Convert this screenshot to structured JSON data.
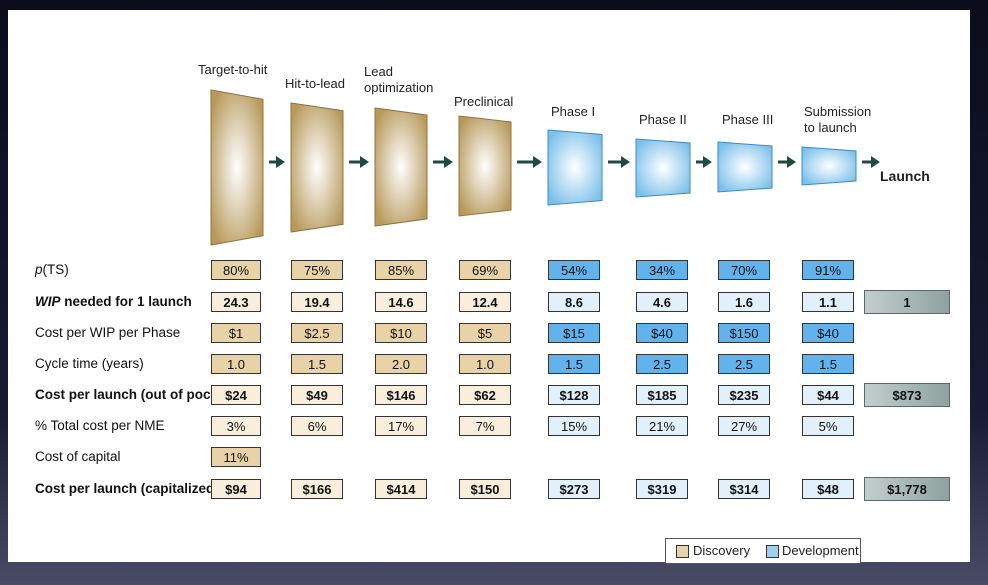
{
  "stages": [
    {
      "label": "Target-to-hit",
      "group": "discovery"
    },
    {
      "label": "Hit-to-lead",
      "group": "discovery"
    },
    {
      "label": "Lead\noptimization",
      "group": "discovery"
    },
    {
      "label": "Preclinical",
      "group": "discovery"
    },
    {
      "label": "Phase I",
      "group": "development"
    },
    {
      "label": "Phase II",
      "group": "development"
    },
    {
      "label": "Phase III",
      "group": "development"
    },
    {
      "label": "Submission\nto launch",
      "group": "development"
    }
  ],
  "launch_label": "Launch",
  "rows": [
    {
      "label_pre": "p",
      "label_post": "(TS)",
      "bold": false,
      "style": "strong",
      "values": [
        "80%",
        "75%",
        "85%",
        "69%",
        "54%",
        "34%",
        "70%",
        "91%"
      ],
      "launch": ""
    },
    {
      "label_pre": "WIP",
      "label_post": " needed for 1 launch",
      "bold": true,
      "style": "light",
      "values": [
        "24.3",
        "19.4",
        "14.6",
        "12.4",
        "8.6",
        "4.6",
        "1.6",
        "1.1"
      ],
      "launch": "1"
    },
    {
      "label_pre": "",
      "label_post": "Cost per WIP per Phase",
      "bold": false,
      "style": "strong",
      "values": [
        "$1",
        "$2.5",
        "$10",
        "$5",
        "$15",
        "$40",
        "$150",
        "$40"
      ],
      "launch": ""
    },
    {
      "label_pre": "",
      "label_post": "Cycle time (years)",
      "bold": false,
      "style": "strong",
      "values": [
        "1.0",
        "1.5",
        "2.0",
        "1.0",
        "1.5",
        "2.5",
        "2.5",
        "1.5"
      ],
      "launch": ""
    },
    {
      "label_pre": "",
      "label_post": "Cost per launch (out of pocket)",
      "bold": true,
      "style": "light",
      "values": [
        "$24",
        "$49",
        "$146",
        "$62",
        "$128",
        "$185",
        "$235",
        "$44"
      ],
      "launch": "$873"
    },
    {
      "label_pre": "",
      "label_post": "% Total cost per NME",
      "bold": false,
      "style": "light",
      "values": [
        "3%",
        "6%",
        "17%",
        "7%",
        "15%",
        "21%",
        "27%",
        "5%"
      ],
      "launch": ""
    },
    {
      "label_pre": "",
      "label_post": "Cost of capital",
      "bold": false,
      "style": "strong",
      "values": [
        "11%",
        "",
        "",
        "",
        "",
        "",
        "",
        ""
      ],
      "launch": ""
    },
    {
      "label_pre": "",
      "label_post": "Cost per launch (capitalized)",
      "bold": true,
      "style": "light",
      "values": [
        "$94",
        "$166",
        "$414",
        "$150",
        "$273",
        "$319",
        "$314",
        "$48"
      ],
      "launch": "$1,778"
    }
  ],
  "legend": {
    "discovery": "Discovery",
    "development": "Development"
  },
  "colors": {
    "discovery_shape": "#b89a5c",
    "development_shape": "#7cc0ea",
    "arrow": "#1f4a44"
  }
}
